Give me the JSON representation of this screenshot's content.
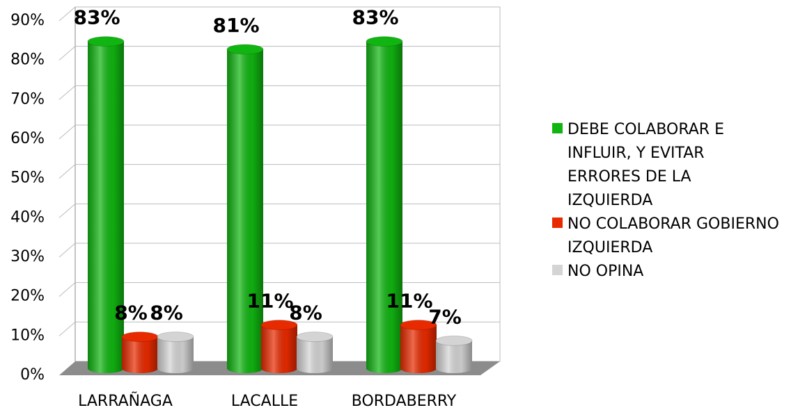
{
  "chart_data": {
    "type": "bar",
    "categories": [
      "LARRAÑAGA",
      "LACALLE",
      "BORDABERRY"
    ],
    "series": [
      {
        "name": "DEBE COLABORAR E INFLUIR, Y EVITAR ERRORES DE LA IZQUIERDA",
        "color": "#11b511",
        "values": [
          83,
          81,
          83
        ],
        "value_labels": [
          "83%",
          "81%",
          "83%"
        ]
      },
      {
        "name": "NO COLABORAR GOBIERNO IZQUIERDA",
        "color": "#e82a00",
        "values": [
          8,
          11,
          11
        ],
        "value_labels": [
          "8%",
          "11%",
          "11%"
        ]
      },
      {
        "name": "NO OPINA",
        "color": "#d4d4d4",
        "values": [
          8,
          8,
          7
        ],
        "value_labels": [
          "8%",
          "8%",
          "7%"
        ]
      }
    ],
    "ylim": [
      0,
      90
    ],
    "yticks": [
      {
        "value": 0,
        "label": "0%"
      },
      {
        "value": 10,
        "label": "10%"
      },
      {
        "value": 20,
        "label": "20%"
      },
      {
        "value": 30,
        "label": "30%"
      },
      {
        "value": 40,
        "label": "40%"
      },
      {
        "value": 50,
        "label": "50%"
      },
      {
        "value": 60,
        "label": "60%"
      },
      {
        "value": 70,
        "label": "70%"
      },
      {
        "value": 80,
        "label": "80%"
      },
      {
        "value": 90,
        "label": "90%"
      }
    ],
    "grid": true,
    "legend": "right"
  }
}
